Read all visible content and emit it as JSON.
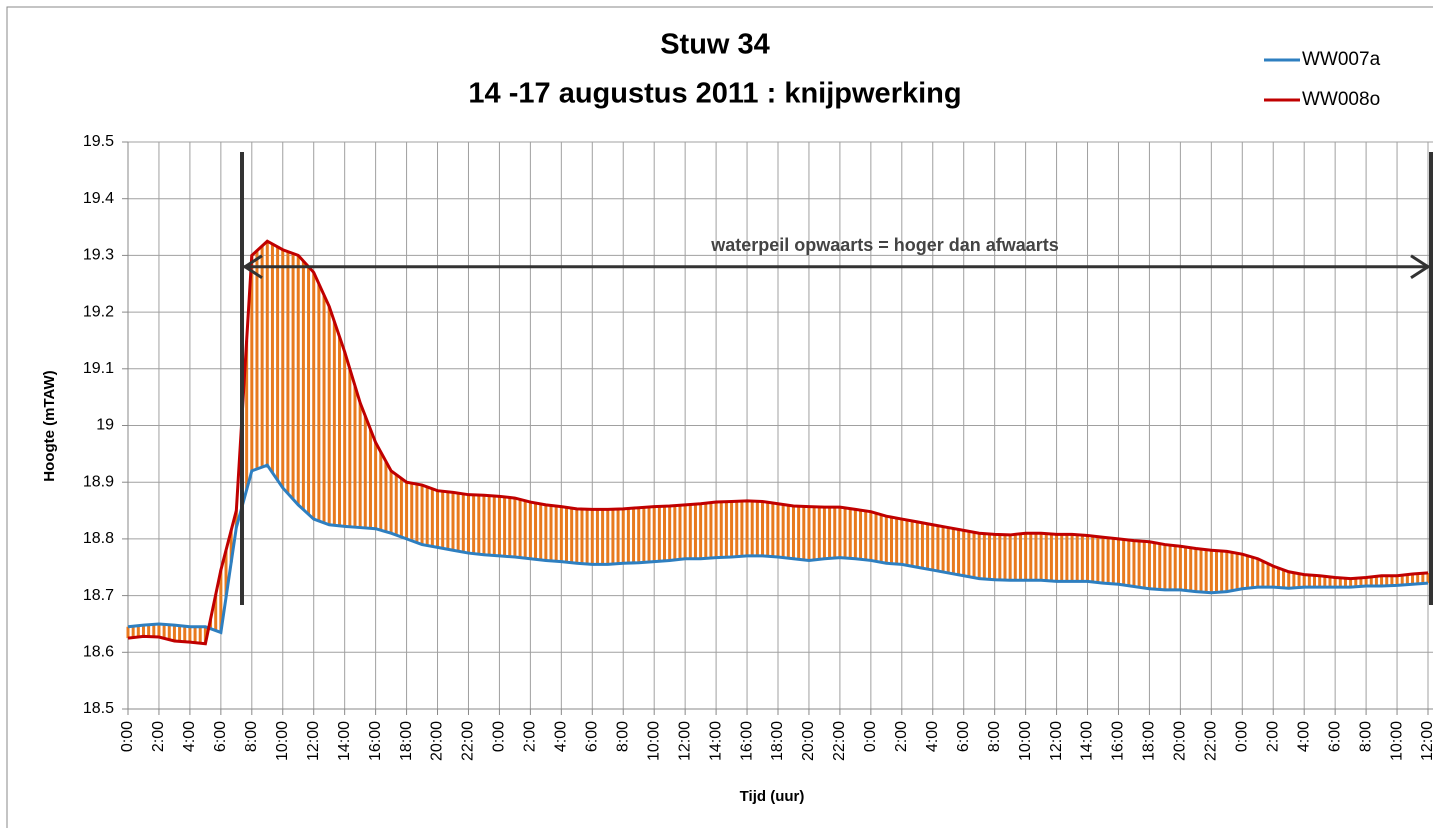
{
  "chart_data": {
    "type": "line",
    "title": [
      "Stuw 34",
      "14 -17 augustus 2011 : knijpwerking"
    ],
    "xlabel": "Tijd (uur)",
    "ylabel": "Hoogte (mTAW)",
    "annotation": "waterpeil opwaarts = hoger dan afwaarts",
    "categories": [
      "0:00",
      null,
      "2:00",
      null,
      "4:00",
      null,
      "6:00",
      null,
      "8:00",
      null,
      "10:00",
      null,
      "12:00",
      null,
      "14:00",
      null,
      "16:00",
      null,
      "18:00",
      null,
      "20:00",
      null,
      "22:00",
      null,
      "0:00",
      null,
      "2:00",
      null,
      "4:00",
      null,
      "6:00",
      null,
      "8:00",
      null,
      "10:00",
      null,
      "12:00",
      null,
      "14:00",
      null,
      "16:00",
      null,
      "18:00",
      null,
      "20:00",
      null,
      "22:00",
      null,
      "0:00",
      null,
      "2:00",
      null,
      "4:00",
      null,
      "6:00",
      null,
      "8:00",
      null,
      "10:00",
      null,
      "12:00",
      null,
      "14:00",
      null,
      "16:00",
      null,
      "18:00",
      null,
      "20:00",
      null,
      "22:00",
      null,
      "0:00",
      null,
      "2:00",
      null,
      "4:00",
      null,
      "6:00",
      null,
      "8:00",
      null,
      "10:00",
      null,
      "12:00"
    ],
    "series": [
      {
        "name": "WW007a",
        "color": "#2e7fc0",
        "values": [
          18.645,
          18.648,
          18.65,
          18.648,
          18.645,
          18.645,
          18.635,
          18.82,
          18.92,
          18.93,
          18.89,
          18.86,
          18.835,
          18.825,
          18.822,
          18.82,
          18.818,
          18.81,
          18.8,
          18.79,
          18.785,
          18.78,
          18.775,
          18.772,
          18.77,
          18.768,
          18.765,
          18.762,
          18.76,
          18.757,
          18.755,
          18.755,
          18.757,
          18.758,
          18.76,
          18.762,
          18.765,
          18.765,
          18.767,
          18.768,
          18.77,
          18.77,
          18.768,
          18.765,
          18.762,
          18.765,
          18.767,
          18.765,
          18.762,
          18.757,
          18.755,
          18.75,
          18.745,
          18.74,
          18.735,
          18.73,
          18.728,
          18.727,
          18.727,
          18.727,
          18.725,
          18.725,
          18.725,
          18.722,
          18.72,
          18.716,
          18.712,
          18.71,
          18.71,
          18.707,
          18.705,
          18.707,
          18.712,
          18.715,
          18.715,
          18.713,
          18.715,
          18.715,
          18.715,
          18.715,
          18.717,
          18.717,
          18.718,
          18.72,
          18.722
        ]
      },
      {
        "name": "WW008o",
        "color": "#c00000",
        "values": [
          18.625,
          18.628,
          18.627,
          18.62,
          18.618,
          18.615,
          18.745,
          18.85,
          19.3,
          19.325,
          19.31,
          19.3,
          19.27,
          19.21,
          19.13,
          19.04,
          18.97,
          18.92,
          18.9,
          18.895,
          18.885,
          18.882,
          18.878,
          18.877,
          18.875,
          18.872,
          18.865,
          18.86,
          18.857,
          18.853,
          18.852,
          18.852,
          18.853,
          18.855,
          18.857,
          18.858,
          18.86,
          18.862,
          18.865,
          18.866,
          18.867,
          18.866,
          18.862,
          18.858,
          18.857,
          18.856,
          18.856,
          18.852,
          18.848,
          18.84,
          18.835,
          18.83,
          18.825,
          18.82,
          18.815,
          18.81,
          18.808,
          18.807,
          18.81,
          18.81,
          18.808,
          18.808,
          18.806,
          18.803,
          18.8,
          18.797,
          18.795,
          18.79,
          18.787,
          18.783,
          18.78,
          18.778,
          18.773,
          18.765,
          18.752,
          18.742,
          18.737,
          18.735,
          18.732,
          18.73,
          18.732,
          18.735,
          18.735,
          18.738,
          18.74
        ]
      }
    ],
    "fill_color": "#e87a1e",
    "ylim": [
      18.5,
      19.5
    ],
    "yticks": [
      18.5,
      18.6,
      18.7,
      18.8,
      18.9,
      19,
      19.1,
      19.2,
      19.3,
      19.4,
      19.5
    ],
    "grid": true,
    "legend": "upper right"
  }
}
